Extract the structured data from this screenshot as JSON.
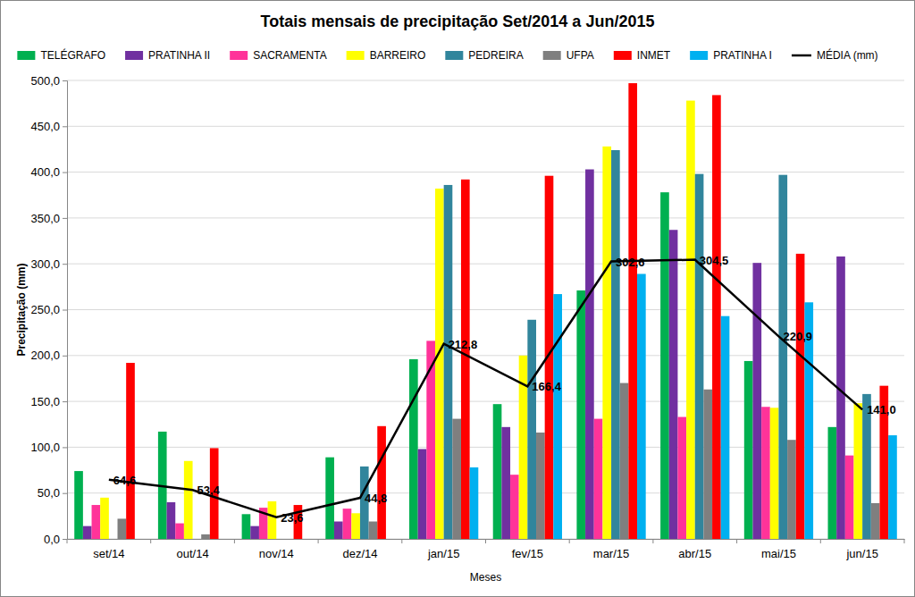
{
  "chart_data": {
    "type": "bar",
    "title": "Totais mensais de precipitação Set/2014 a Jun/2015",
    "x_label": "Meses",
    "y_label": "Precipitação (mm)",
    "categories": [
      "set/14",
      "out/14",
      "nov/14",
      "dez/14",
      "jan/15",
      "fev/15",
      "mar/15",
      "abr/15",
      "mai/15",
      "jun/15"
    ],
    "series": [
      {
        "name": "TELÉGRAFO",
        "color": "#00B050",
        "values": [
          74,
          117,
          27,
          89,
          196,
          147,
          271,
          378,
          194,
          122
        ]
      },
      {
        "name": "PRATINHA II",
        "color": "#7030A0",
        "values": [
          14,
          40,
          14,
          19,
          98,
          122,
          403,
          337,
          301,
          308
        ]
      },
      {
        "name": "SACRAMENTA",
        "color": "#FF3399",
        "values": [
          37,
          17,
          34,
          33,
          216,
          70,
          131,
          133,
          144,
          91
        ]
      },
      {
        "name": "BARREIRO",
        "color": "#FFFF00",
        "values": [
          45,
          85,
          41,
          28,
          382,
          200,
          428,
          478,
          143,
          148
        ]
      },
      {
        "name": "PEDREIRA",
        "color": "#31859C",
        "values": [
          null,
          null,
          null,
          79,
          386,
          239,
          424,
          398,
          397,
          158
        ]
      },
      {
        "name": "UFPA",
        "color": "#7F7F7F",
        "values": [
          22,
          5,
          null,
          19,
          131,
          116,
          170,
          163,
          108,
          39
        ]
      },
      {
        "name": "INMET",
        "color": "#FF0000",
        "values": [
          192,
          99,
          37,
          123,
          392,
          396,
          497,
          484,
          311,
          167
        ]
      },
      {
        "name": "PRATINHA I",
        "color": "#00B0F0",
        "values": [
          null,
          null,
          null,
          null,
          78,
          267,
          289,
          243,
          258,
          113
        ]
      },
      {
        "name": "MÉDIA (mm)",
        "type": "line",
        "color": "#000000",
        "data_labels": true,
        "values": [
          64.6,
          53.4,
          23.6,
          44.8,
          212.8,
          166.4,
          302.6,
          304.5,
          220.9,
          141.0
        ],
        "value_labels": [
          "64,6",
          "53,4",
          "23,6",
          "44,8",
          "212,8",
          "166,4",
          "302,6",
          "304,5",
          "220,9",
          "141,0"
        ]
      }
    ],
    "ylim": [
      0,
      500
    ],
    "yticks": [
      {
        "value": 0,
        "label": "0,0"
      },
      {
        "value": 50,
        "label": "50,0"
      },
      {
        "value": 100,
        "label": "100,0"
      },
      {
        "value": 150,
        "label": "150,0"
      },
      {
        "value": 200,
        "label": "200,0"
      },
      {
        "value": 250,
        "label": "250,0"
      },
      {
        "value": 300,
        "label": "300,0"
      },
      {
        "value": 350,
        "label": "350,0"
      },
      {
        "value": 400,
        "label": "400,0"
      },
      {
        "value": 450,
        "label": "450,0"
      },
      {
        "value": 500,
        "label": "500,0"
      }
    ],
    "grid": true,
    "legend": "top"
  }
}
